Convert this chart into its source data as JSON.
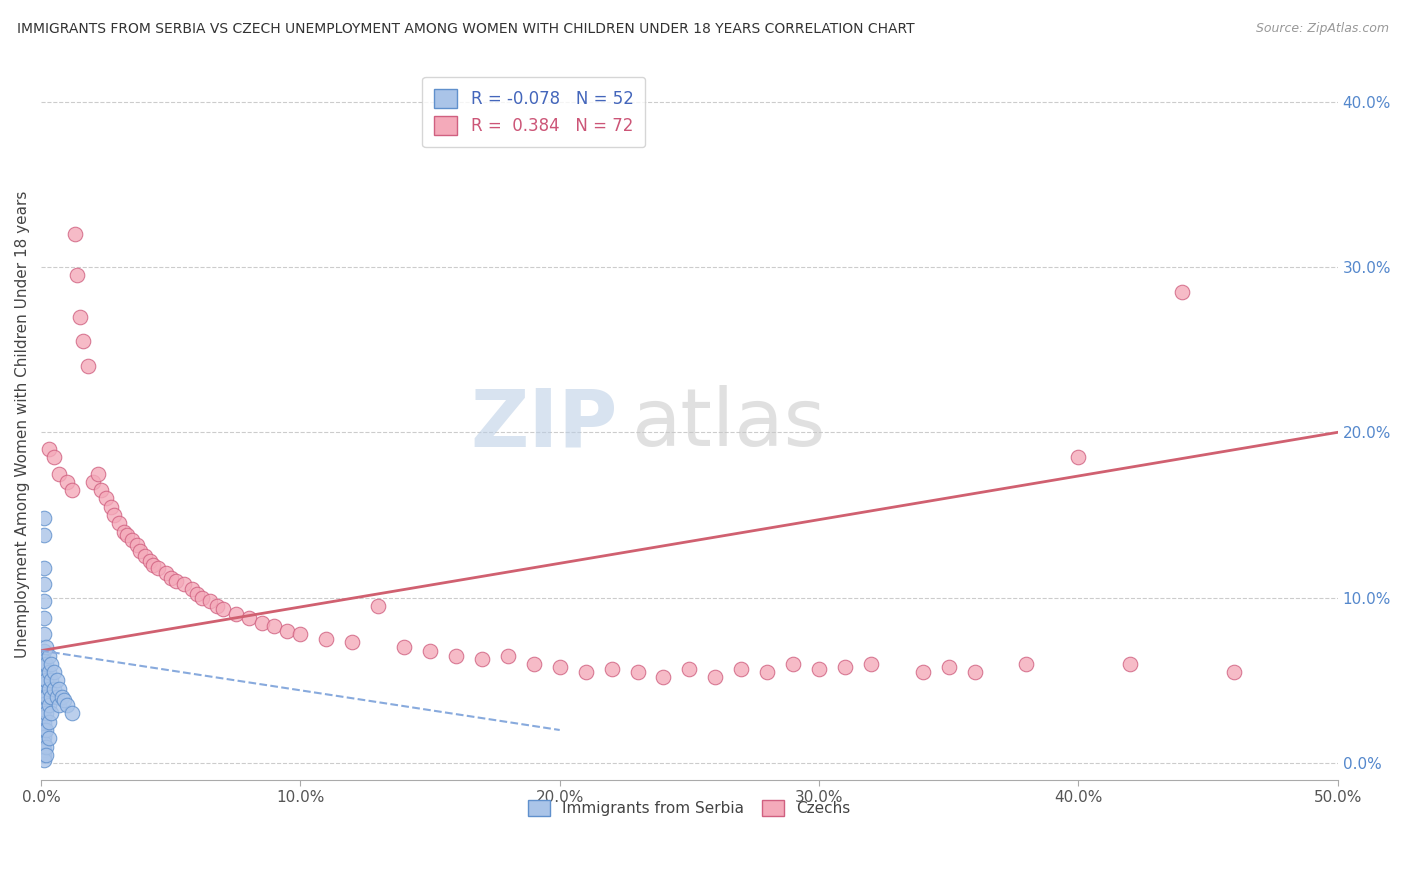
{
  "title": "IMMIGRANTS FROM SERBIA VS CZECH UNEMPLOYMENT AMONG WOMEN WITH CHILDREN UNDER 18 YEARS CORRELATION CHART",
  "source": "Source: ZipAtlas.com",
  "ylabel": "Unemployment Among Women with Children Under 18 years",
  "xlim": [
    0.0,
    0.5
  ],
  "ylim": [
    -0.01,
    0.42
  ],
  "xticks": [
    0.0,
    0.1,
    0.2,
    0.3,
    0.4,
    0.5
  ],
  "xtick_labels": [
    "0.0%",
    "10.0%",
    "20.0%",
    "30.0%",
    "40.0%",
    "50.0%"
  ],
  "yticks": [
    0.0,
    0.1,
    0.2,
    0.3,
    0.4
  ],
  "ytick_labels": [
    "0.0%",
    "10.0%",
    "20.0%",
    "30.0%",
    "40.0%"
  ],
  "legend_R1": "-0.078",
  "legend_N1": "52",
  "legend_R2": "0.384",
  "legend_N2": "72",
  "serbia_color": "#aac4e8",
  "czech_color": "#f4aaba",
  "serbia_edge": "#6090cc",
  "czech_edge": "#d06080",
  "trend_serbia_color": "#88aadd",
  "trend_czech_color": "#d06070",
  "serbia_points": [
    [
      0.001,
      0.148
    ],
    [
      0.001,
      0.138
    ],
    [
      0.001,
      0.118
    ],
    [
      0.001,
      0.108
    ],
    [
      0.001,
      0.098
    ],
    [
      0.001,
      0.088
    ],
    [
      0.001,
      0.078
    ],
    [
      0.001,
      0.068
    ],
    [
      0.001,
      0.062
    ],
    [
      0.001,
      0.058
    ],
    [
      0.001,
      0.052
    ],
    [
      0.001,
      0.048
    ],
    [
      0.001,
      0.043
    ],
    [
      0.001,
      0.04
    ],
    [
      0.001,
      0.036
    ],
    [
      0.001,
      0.032
    ],
    [
      0.001,
      0.028
    ],
    [
      0.001,
      0.024
    ],
    [
      0.001,
      0.02
    ],
    [
      0.001,
      0.016
    ],
    [
      0.001,
      0.012
    ],
    [
      0.001,
      0.008
    ],
    [
      0.001,
      0.005
    ],
    [
      0.001,
      0.002
    ],
    [
      0.002,
      0.07
    ],
    [
      0.002,
      0.06
    ],
    [
      0.002,
      0.05
    ],
    [
      0.002,
      0.04
    ],
    [
      0.002,
      0.03
    ],
    [
      0.002,
      0.02
    ],
    [
      0.002,
      0.01
    ],
    [
      0.002,
      0.005
    ],
    [
      0.003,
      0.065
    ],
    [
      0.003,
      0.055
    ],
    [
      0.003,
      0.045
    ],
    [
      0.003,
      0.035
    ],
    [
      0.003,
      0.025
    ],
    [
      0.003,
      0.015
    ],
    [
      0.004,
      0.06
    ],
    [
      0.004,
      0.05
    ],
    [
      0.004,
      0.04
    ],
    [
      0.004,
      0.03
    ],
    [
      0.005,
      0.055
    ],
    [
      0.005,
      0.045
    ],
    [
      0.006,
      0.05
    ],
    [
      0.006,
      0.04
    ],
    [
      0.007,
      0.045
    ],
    [
      0.007,
      0.035
    ],
    [
      0.008,
      0.04
    ],
    [
      0.009,
      0.038
    ],
    [
      0.01,
      0.035
    ],
    [
      0.012,
      0.03
    ]
  ],
  "czech_points": [
    [
      0.003,
      0.19
    ],
    [
      0.005,
      0.185
    ],
    [
      0.007,
      0.175
    ],
    [
      0.01,
      0.17
    ],
    [
      0.012,
      0.165
    ],
    [
      0.013,
      0.32
    ],
    [
      0.014,
      0.295
    ],
    [
      0.015,
      0.27
    ],
    [
      0.016,
      0.255
    ],
    [
      0.018,
      0.24
    ],
    [
      0.02,
      0.17
    ],
    [
      0.022,
      0.175
    ],
    [
      0.023,
      0.165
    ],
    [
      0.025,
      0.16
    ],
    [
      0.027,
      0.155
    ],
    [
      0.028,
      0.15
    ],
    [
      0.03,
      0.145
    ],
    [
      0.032,
      0.14
    ],
    [
      0.033,
      0.138
    ],
    [
      0.035,
      0.135
    ],
    [
      0.037,
      0.132
    ],
    [
      0.038,
      0.128
    ],
    [
      0.04,
      0.125
    ],
    [
      0.042,
      0.122
    ],
    [
      0.043,
      0.12
    ],
    [
      0.045,
      0.118
    ],
    [
      0.048,
      0.115
    ],
    [
      0.05,
      0.112
    ],
    [
      0.052,
      0.11
    ],
    [
      0.055,
      0.108
    ],
    [
      0.058,
      0.105
    ],
    [
      0.06,
      0.102
    ],
    [
      0.062,
      0.1
    ],
    [
      0.065,
      0.098
    ],
    [
      0.068,
      0.095
    ],
    [
      0.07,
      0.093
    ],
    [
      0.075,
      0.09
    ],
    [
      0.08,
      0.088
    ],
    [
      0.085,
      0.085
    ],
    [
      0.09,
      0.083
    ],
    [
      0.095,
      0.08
    ],
    [
      0.1,
      0.078
    ],
    [
      0.11,
      0.075
    ],
    [
      0.12,
      0.073
    ],
    [
      0.13,
      0.095
    ],
    [
      0.14,
      0.07
    ],
    [
      0.15,
      0.068
    ],
    [
      0.16,
      0.065
    ],
    [
      0.17,
      0.063
    ],
    [
      0.18,
      0.065
    ],
    [
      0.19,
      0.06
    ],
    [
      0.2,
      0.058
    ],
    [
      0.21,
      0.055
    ],
    [
      0.22,
      0.057
    ],
    [
      0.23,
      0.055
    ],
    [
      0.24,
      0.052
    ],
    [
      0.25,
      0.057
    ],
    [
      0.26,
      0.052
    ],
    [
      0.27,
      0.057
    ],
    [
      0.28,
      0.055
    ],
    [
      0.29,
      0.06
    ],
    [
      0.3,
      0.057
    ],
    [
      0.31,
      0.058
    ],
    [
      0.32,
      0.06
    ],
    [
      0.34,
      0.055
    ],
    [
      0.35,
      0.058
    ],
    [
      0.36,
      0.055
    ],
    [
      0.38,
      0.06
    ],
    [
      0.4,
      0.185
    ],
    [
      0.42,
      0.06
    ],
    [
      0.44,
      0.285
    ],
    [
      0.46,
      0.055
    ]
  ],
  "czech_trend_x": [
    0.0,
    0.5
  ],
  "czech_trend_y": [
    0.068,
    0.2
  ],
  "serbia_trend_x": [
    0.0,
    0.2
  ],
  "serbia_trend_y": [
    0.068,
    0.02
  ]
}
